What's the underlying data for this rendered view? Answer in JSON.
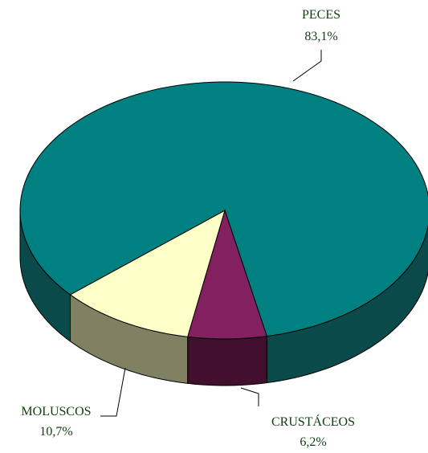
{
  "chart_data": {
    "type": "pie",
    "categories": [
      "PECES",
      "CRUSTÁCEOS",
      "MOLUSCOS"
    ],
    "values": [
      83.1,
      6.2,
      10.7
    ],
    "value_labels": [
      "83,1%",
      "6,2%",
      "10,7%"
    ],
    "colors": [
      "#008080",
      "#832060",
      "#ffffc8"
    ],
    "side_colors": [
      "#0b4a4a",
      "#40102e",
      "#808062"
    ],
    "three_d": true
  }
}
